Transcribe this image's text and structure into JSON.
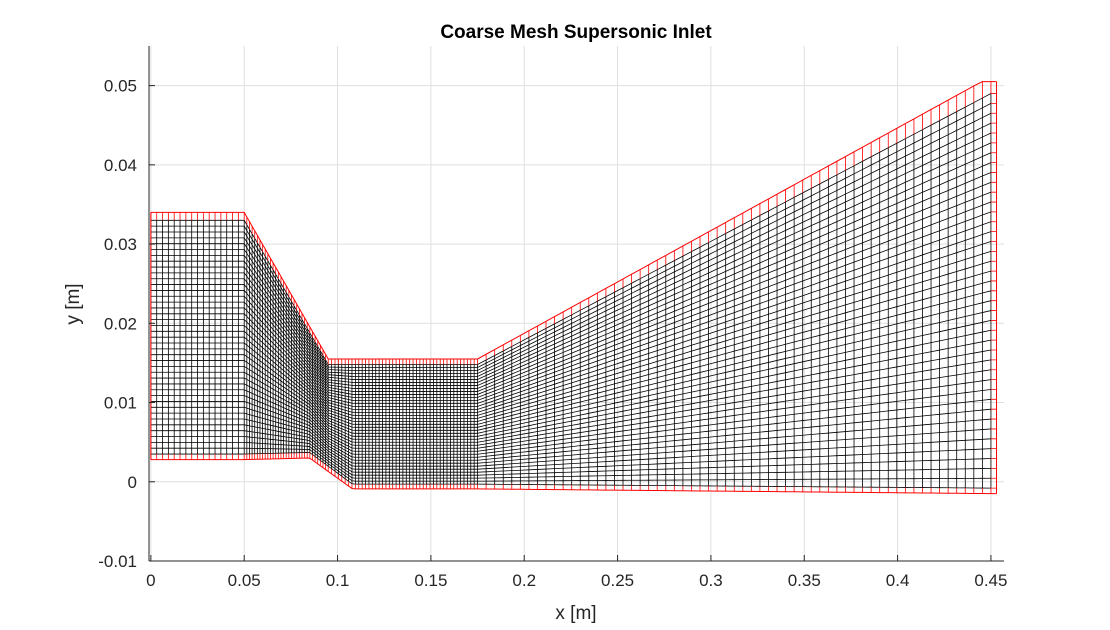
{
  "chart_data": {
    "type": "line",
    "title": "Coarse Mesh Supersonic Inlet",
    "xlabel": "x [m]",
    "ylabel": "y [m]",
    "xlim": [
      -0.001,
      0.457
    ],
    "ylim": [
      -0.01,
      0.055
    ],
    "xticks": [
      0,
      0.05,
      0.1,
      0.15,
      0.2,
      0.25,
      0.3,
      0.35,
      0.4,
      0.45
    ],
    "xtick_labels": [
      "0",
      "0.05",
      "0.1",
      "0.15",
      "0.2",
      "0.25",
      "0.3",
      "0.35",
      "0.4",
      "0.45"
    ],
    "yticks": [
      -0.01,
      0,
      0.01,
      0.02,
      0.03,
      0.04,
      0.05
    ],
    "ytick_labels": [
      "-0.01",
      "0",
      "0.01",
      "0.02",
      "0.03",
      "0.04",
      "0.05"
    ],
    "grid": true,
    "series": [
      {
        "color": "#000000",
        "upper_wall": {
          "x": [
            0,
            0.05,
            0.095,
            0.175,
            0.45
          ],
          "y": [
            0.033,
            0.033,
            0.0148,
            0.0148,
            0.049
          ]
        },
        "lower_wall": {
          "x": [
            0,
            0.05,
            0.085,
            0.108,
            0.175,
            0.45
          ],
          "y": [
            0.0035,
            0.0035,
            0.0037,
            -0.0003,
            -0.0003,
            -0.0008
          ]
        },
        "x_segments": [
          {
            "x_start": 0,
            "x_end": 0.05,
            "columns": 16
          },
          {
            "x_start": 0.05,
            "x_end": 0.095,
            "columns": 32
          },
          {
            "x_start": 0.095,
            "x_end": 0.175,
            "columns": 44
          },
          {
            "x_start": 0.175,
            "x_end": 0.45,
            "columns": 60
          }
        ],
        "rows": 40
      },
      {
        "color": "#ff0000",
        "upper_outer": {
          "x": [
            0,
            0.05,
            0.095,
            0.175,
            0.445,
            0.453
          ],
          "y": [
            0.034,
            0.034,
            0.0155,
            0.0155,
            0.0505,
            0.0505
          ]
        },
        "lower_outer": {
          "x": [
            0,
            0.05,
            0.085,
            0.108,
            0.175,
            0.453
          ],
          "y": [
            0.0028,
            0.0028,
            0.003,
            -0.0009,
            -0.0009,
            -0.0015
          ]
        },
        "outlet_x": 0.453
      }
    ]
  }
}
